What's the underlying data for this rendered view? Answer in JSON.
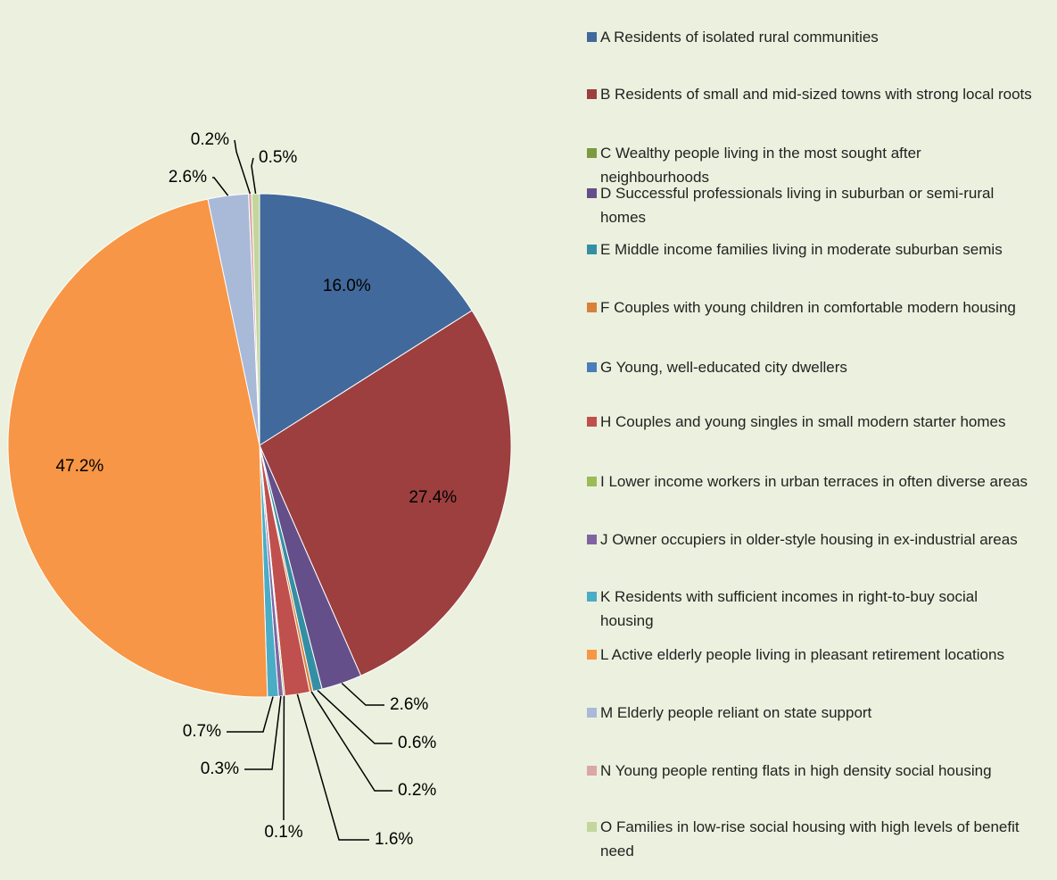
{
  "chart_data": {
    "type": "pie",
    "categories": [
      "A Residents of isolated rural communities",
      "B Residents of small and mid-sized towns with strong local roots",
      "C Wealthy people living in the most sought after neighbourhoods",
      "D Successful professionals living in suburban or semi-rural homes",
      "E Middle income families living in moderate suburban semis",
      "F Couples with young children in comfortable modern housing",
      "G Young, well-educated city dwellers",
      "H Couples and young singles in small modern starter homes",
      "I Lower income workers in urban terraces in often diverse areas",
      "J Owner occupiers in older-style housing in ex-industrial areas",
      "K Residents with sufficient incomes in right-to-buy social housing",
      "L Active elderly people living in pleasant retirement locations",
      "M Elderly people reliant on state support",
      "N Young people renting flats in high density social housing",
      "O Families in low-rise social housing with high levels of benefit need"
    ],
    "values": [
      16.0,
      27.4,
      0,
      2.6,
      0.6,
      0.2,
      0,
      1.6,
      0.1,
      0.3,
      0.7,
      47.2,
      2.6,
      0.2,
      0.5
    ],
    "value_labels": [
      "16.0%",
      "27.4%",
      null,
      "2.6%",
      "0.6%",
      "0.2%",
      null,
      "1.6%",
      "0.1%",
      "0.3%",
      "0.7%",
      "47.2%",
      "2.6%",
      "0.2%",
      "0.5%"
    ],
    "colors": [
      "#41699b",
      "#9c3f3e",
      "#7d9a3f",
      "#654f8a",
      "#358fa4",
      "#d9803a",
      "#4a7ebb",
      "#c0504d",
      "#9bbb59",
      "#8064a2",
      "#4bacc6",
      "#f79646",
      "#a9b9d8",
      "#dba7a6",
      "#c3d69b"
    ],
    "legend": "right"
  }
}
